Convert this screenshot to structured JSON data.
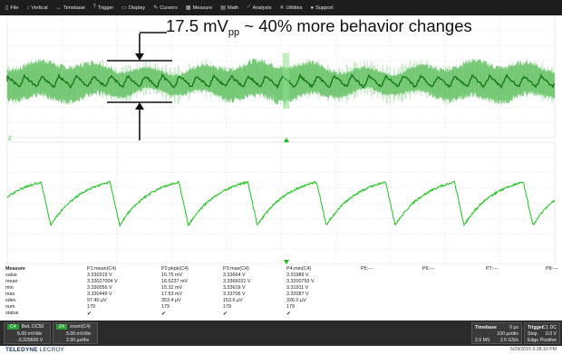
{
  "menubar": {
    "items": [
      {
        "label": "File",
        "icon": "file-icon"
      },
      {
        "label": "Vertical",
        "icon": "vertical-icon"
      },
      {
        "label": "Timebase",
        "icon": "timebase-icon"
      },
      {
        "label": "Trigger",
        "icon": "trigger-icon"
      },
      {
        "label": "Display",
        "icon": "display-icon"
      },
      {
        "label": "Cursors",
        "icon": "cursors-icon"
      },
      {
        "label": "Measure",
        "icon": "measure-icon"
      },
      {
        "label": "Math",
        "icon": "math-icon"
      },
      {
        "label": "Analysis",
        "icon": "analysis-icon"
      },
      {
        "label": "Utilities",
        "icon": "utilities-icon"
      },
      {
        "label": "Support",
        "icon": "support-icon"
      }
    ]
  },
  "annotation": {
    "value": "17.5 mV",
    "sub": "pp",
    "text": " ~ 40% more behavior changes"
  },
  "waveform": {
    "color_dark": "#117711",
    "color_light": "#66c266",
    "color_trace": "#1ec41e",
    "grid_color": "#cfcfcf",
    "trigger_marker_color": "#22bb22",
    "channel_marker_label": "Z"
  },
  "measure": {
    "row_labels": [
      "Measure",
      "value",
      "mean",
      "min",
      "max",
      "sdev",
      "num",
      "status"
    ],
    "columns": [
      {
        "header": "P1:mean(C4)",
        "values": [
          "3.330319 V",
          "3.33027004 V",
          "3.330056 V",
          "3.330449 V",
          "97.40 µV",
          "179",
          "✔"
        ]
      },
      {
        "header": "P2:pkpk(C4)",
        "values": [
          "16.75 mV",
          "16.5237 mV",
          "15.32 mV",
          "17.53 mV",
          "353.4 µV",
          "179",
          "✔"
        ]
      },
      {
        "header": "P3:max(C4)",
        "values": [
          "3.33664 V",
          "3.3366031 V",
          "3.33619 V",
          "3.33706 V",
          "153.6 µV",
          "179",
          "✔"
        ]
      },
      {
        "header": "P4:min(C4)",
        "values": [
          "3.31989 V",
          "3.3200793 V",
          "3.31911 V",
          "3.32087 V",
          "326.0 µV",
          "179",
          "✔"
        ]
      },
      {
        "header": "P5:---",
        "values": [
          "",
          "",
          "",
          "",
          "",
          "",
          ""
        ]
      },
      {
        "header": "P6:---",
        "values": [
          "",
          "",
          "",
          "",
          "",
          "",
          ""
        ]
      },
      {
        "header": "P7:---",
        "values": [
          "",
          "",
          "",
          "",
          "",
          "",
          ""
        ]
      },
      {
        "header": "P8:---",
        "values": [
          "",
          "",
          "",
          "",
          "",
          "",
          ""
        ]
      }
    ]
  },
  "channels": {
    "c4": {
      "tag": "C4",
      "coupling": "BwL DC50",
      "vdiv": "5.00 mV/div",
      "offset": "-3.329600 V"
    },
    "z4": {
      "tag": "Z4",
      "name": "zoom(C4)",
      "vdiv": "5.00 mV/div",
      "tdiv": "2.00 µs/div"
    }
  },
  "timebase": {
    "title": "Timebase",
    "delay": "0 µs",
    "tdiv": "100 µs/div",
    "samples": "2.5 MS",
    "rate": "2.5 GS/s"
  },
  "trigger": {
    "title": "Trigger",
    "source": "C1 DC",
    "mode": "Stop",
    "level": "0.0 V",
    "type": "Edge",
    "slope": "Positive"
  },
  "footer": {
    "brand_bold": "TELEDYNE",
    "brand_rest": " LECROY",
    "timestamp": "5/29/2015 5:38:10 PM"
  }
}
